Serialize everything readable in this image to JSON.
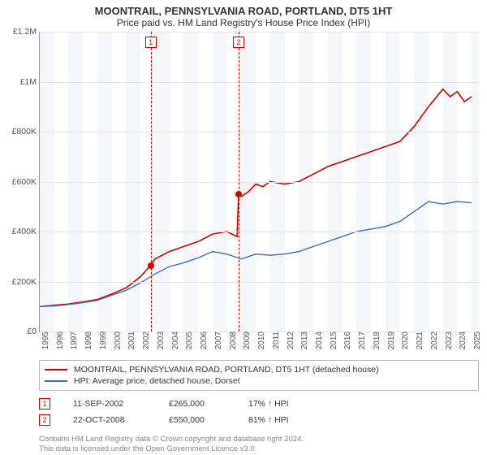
{
  "title": "MOONTRAIL, PENNSYLVANIA ROAD, PORTLAND, DT5 1HT",
  "subtitle": "Price paid vs. HM Land Registry's House Price Index (HPI)",
  "chart": {
    "type": "line",
    "x_min": 1995,
    "x_max": 2025.5,
    "y_min": 0,
    "y_max": 1200000,
    "y_ticks": [
      0,
      200000,
      400000,
      600000,
      800000,
      1000000,
      1200000
    ],
    "y_tick_labels": [
      "£0",
      "£200K",
      "£400K",
      "£600K",
      "£800K",
      "£1M",
      "£1.2M"
    ],
    "x_ticks": [
      1995,
      1996,
      1997,
      1998,
      1999,
      2000,
      2001,
      2002,
      2003,
      2004,
      2005,
      2006,
      2007,
      2008,
      2009,
      2010,
      2011,
      2012,
      2013,
      2014,
      2015,
      2016,
      2017,
      2018,
      2019,
      2020,
      2021,
      2022,
      2023,
      2024,
      2025
    ],
    "grid_color": "#e5e5e5",
    "axis_color": "#999999",
    "background_color": "#ffffff",
    "band_color": "#f4f6fa",
    "series": [
      {
        "name": "price",
        "color": "#d40000",
        "width": 1.6,
        "points": [
          [
            1995,
            100000
          ],
          [
            1996,
            105000
          ],
          [
            1997,
            110000
          ],
          [
            1998,
            118000
          ],
          [
            1999,
            128000
          ],
          [
            2000,
            150000
          ],
          [
            2001,
            175000
          ],
          [
            2002,
            220000
          ],
          [
            2002.7,
            265000
          ],
          [
            2003,
            290000
          ],
          [
            2004,
            320000
          ],
          [
            2005,
            340000
          ],
          [
            2006,
            360000
          ],
          [
            2007,
            390000
          ],
          [
            2008,
            400000
          ],
          [
            2008.7,
            380000
          ],
          [
            2008.81,
            550000
          ],
          [
            2009,
            540000
          ],
          [
            2009.5,
            560000
          ],
          [
            2010,
            590000
          ],
          [
            2010.5,
            580000
          ],
          [
            2011,
            600000
          ],
          [
            2012,
            590000
          ],
          [
            2013,
            600000
          ],
          [
            2014,
            630000
          ],
          [
            2015,
            660000
          ],
          [
            2016,
            680000
          ],
          [
            2017,
            700000
          ],
          [
            2018,
            720000
          ],
          [
            2019,
            740000
          ],
          [
            2020,
            760000
          ],
          [
            2021,
            820000
          ],
          [
            2022,
            900000
          ],
          [
            2023,
            970000
          ],
          [
            2023.5,
            940000
          ],
          [
            2024,
            960000
          ],
          [
            2024.5,
            920000
          ],
          [
            2025,
            940000
          ]
        ]
      },
      {
        "name": "hpi",
        "color": "#3b6fb6",
        "width": 1.4,
        "points": [
          [
            1995,
            100000
          ],
          [
            1996,
            102000
          ],
          [
            1997,
            108000
          ],
          [
            1998,
            115000
          ],
          [
            1999,
            125000
          ],
          [
            2000,
            145000
          ],
          [
            2001,
            165000
          ],
          [
            2002,
            195000
          ],
          [
            2003,
            230000
          ],
          [
            2004,
            260000
          ],
          [
            2005,
            275000
          ],
          [
            2006,
            295000
          ],
          [
            2007,
            320000
          ],
          [
            2008,
            310000
          ],
          [
            2009,
            290000
          ],
          [
            2010,
            310000
          ],
          [
            2011,
            305000
          ],
          [
            2012,
            310000
          ],
          [
            2013,
            320000
          ],
          [
            2014,
            340000
          ],
          [
            2015,
            360000
          ],
          [
            2016,
            380000
          ],
          [
            2017,
            400000
          ],
          [
            2018,
            410000
          ],
          [
            2019,
            420000
          ],
          [
            2020,
            440000
          ],
          [
            2021,
            480000
          ],
          [
            2022,
            520000
          ],
          [
            2023,
            510000
          ],
          [
            2024,
            520000
          ],
          [
            2025,
            515000
          ]
        ]
      }
    ],
    "alt_bands_start": 1995,
    "markers": [
      {
        "n": "1",
        "x": 2002.7,
        "y": 265000,
        "color": "#d40000"
      },
      {
        "n": "2",
        "x": 2008.81,
        "y": 550000,
        "color": "#d40000"
      }
    ]
  },
  "legend": [
    {
      "color": "#d40000",
      "label": "MOONTRAIL, PENNSYLVANIA ROAD, PORTLAND, DT5 1HT (detached house)"
    },
    {
      "color": "#3b6fb6",
      "label": "HPI: Average price, detached house, Dorset"
    }
  ],
  "sales": [
    {
      "n": "1",
      "color": "#d40000",
      "date": "11-SEP-2002",
      "price": "£265,000",
      "delta": "17% ↑ HPI"
    },
    {
      "n": "2",
      "color": "#d40000",
      "date": "22-OCT-2008",
      "price": "£550,000",
      "delta": "81% ↑ HPI"
    }
  ],
  "footer1": "Contains HM Land Registry data © Crown copyright and database right 2024.",
  "footer2": "This data is licensed under the Open Government Licence v3.0."
}
